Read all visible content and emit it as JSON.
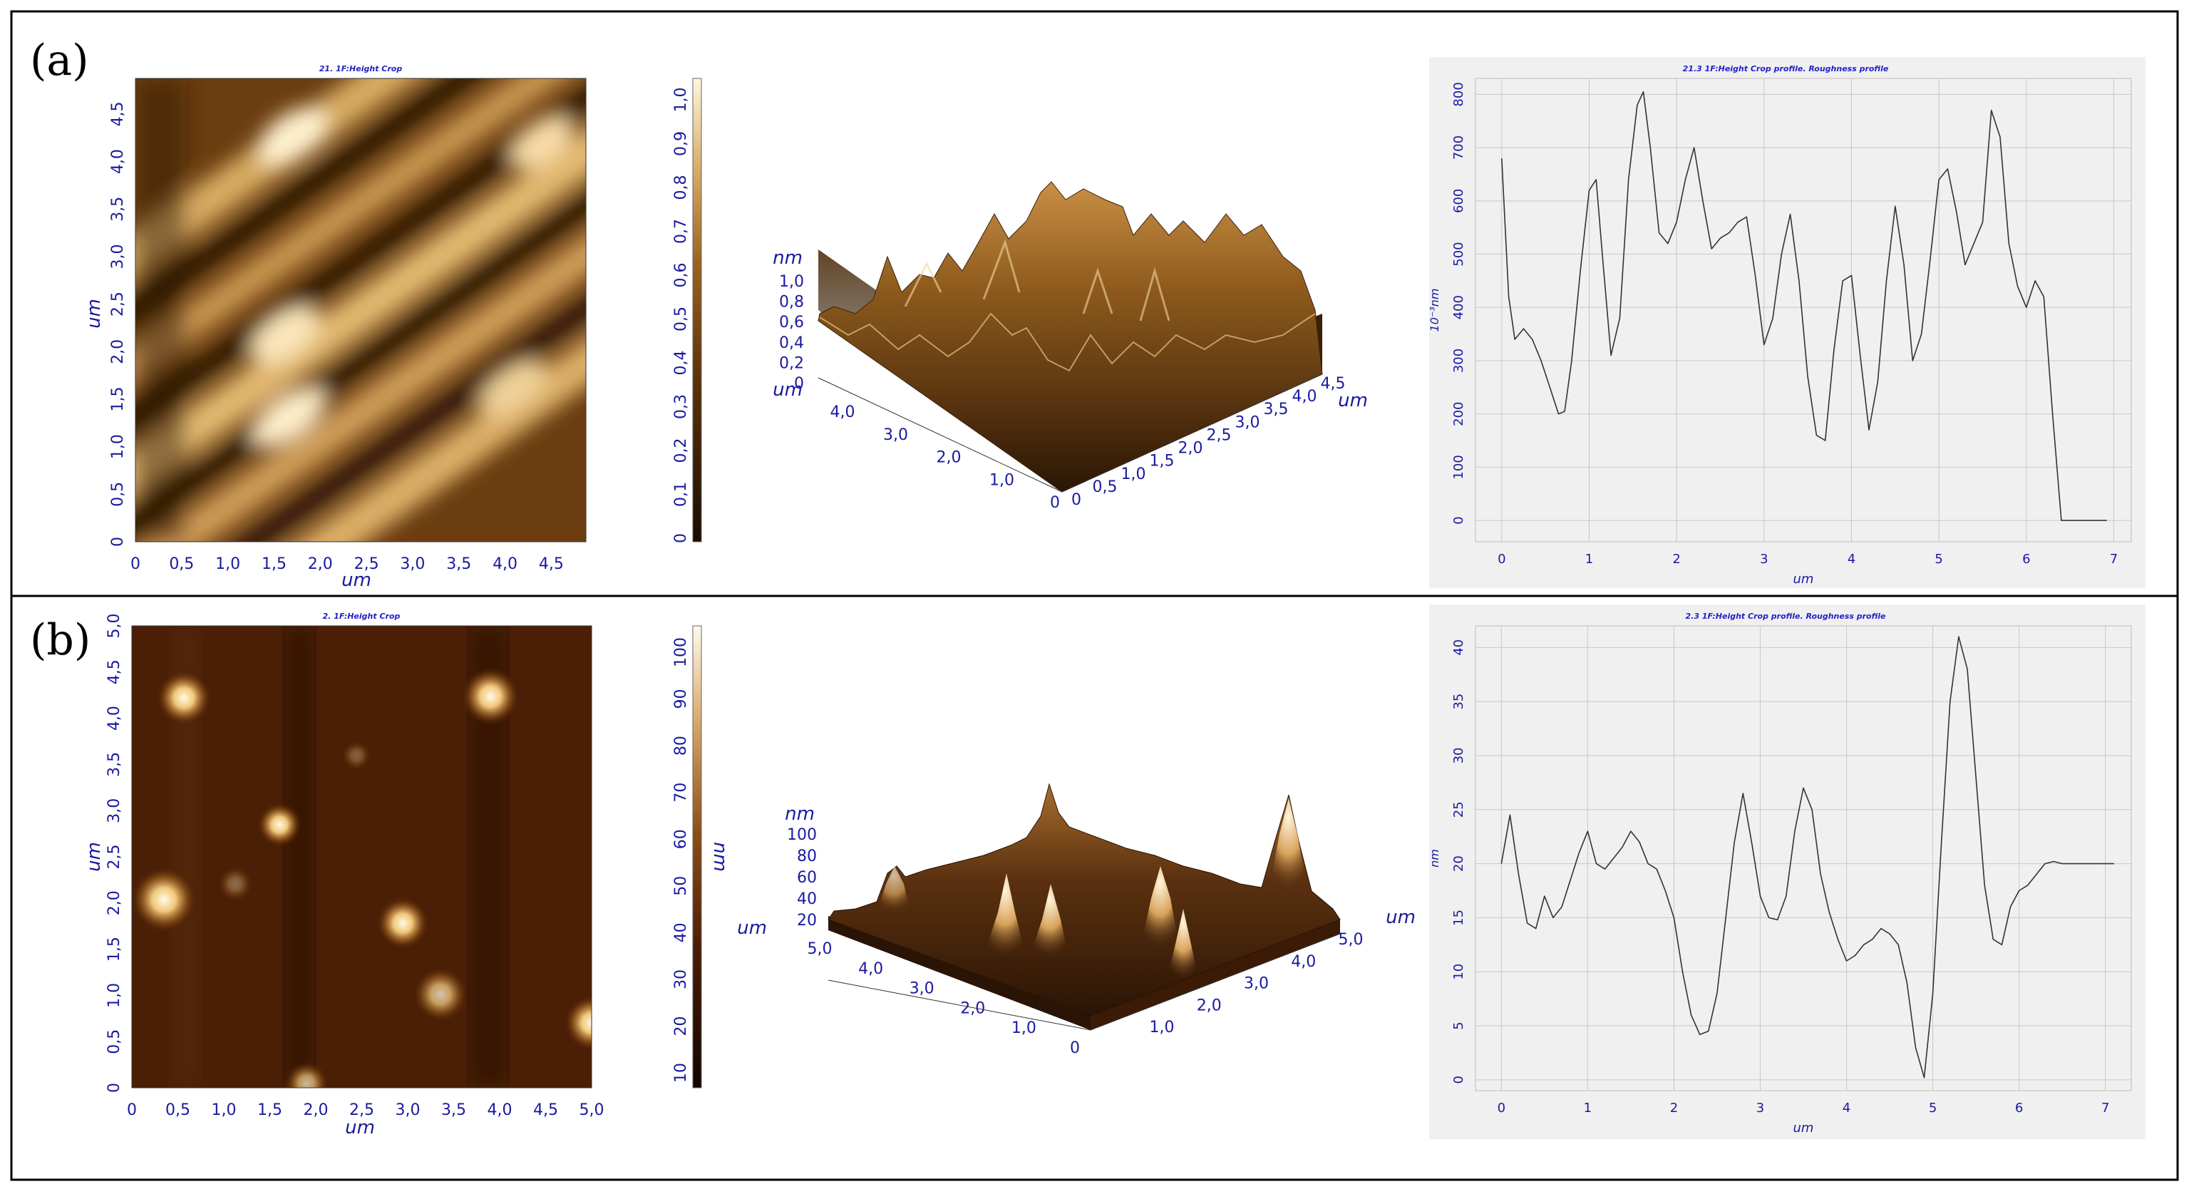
{
  "panels": [
    {
      "label": "(a)",
      "image_title": "21. 1F:Height Crop",
      "map_unit": "um",
      "map_xticks": [
        "0",
        "0,5",
        "1,0",
        "1,5",
        "2,0",
        "2,5",
        "3,0",
        "3,5",
        "4,0",
        "4,5"
      ],
      "map_yticks": [
        "0",
        "0,5",
        "1,0",
        "1,5",
        "2,0",
        "2,5",
        "3,0",
        "3,5",
        "4,0",
        "4,5"
      ],
      "colorbar_ticks": [
        "0",
        "0,1",
        "0,2",
        "0,3",
        "0,4",
        "0,5",
        "0,6",
        "0,7",
        "0,8",
        "0,9",
        "1,0"
      ],
      "colorbar_unit": "",
      "surface_z_unit": "nm",
      "surface_z_ticks": [
        "1,0",
        "0,8",
        "0,6",
        "0,4",
        "0,2",
        "0"
      ],
      "surface_left_unit": "um",
      "surface_left_ticks": [
        "4,0",
        "3,0",
        "2,0",
        "1,0",
        "0"
      ],
      "surface_right_unit": "um",
      "surface_right_ticks": [
        "0",
        "0,5",
        "1,0",
        "1,5",
        "2,0",
        "2,5",
        "3,0",
        "3,5",
        "4,0",
        "4,5"
      ]
    },
    {
      "label": "(b)",
      "image_title": "2. 1F:Height Crop",
      "map_unit": "um",
      "map_xticks": [
        "0",
        "0,5",
        "1,0",
        "1,5",
        "2,0",
        "2,5",
        "3,0",
        "3,5",
        "4,0",
        "4,5",
        "5,0"
      ],
      "map_yticks": [
        "0",
        "0,5",
        "1,0",
        "1,5",
        "2,0",
        "2,5",
        "3,0",
        "3,5",
        "4,0",
        "4,5",
        "5,0"
      ],
      "colorbar_ticks": [
        "10",
        "20",
        "30",
        "40",
        "50",
        "60",
        "70",
        "80",
        "90",
        "100"
      ],
      "colorbar_unit": "nm",
      "surface_z_unit": "nm",
      "surface_z_ticks": [
        "100",
        "80",
        "60",
        "40",
        "20"
      ],
      "surface_left_unit": "um",
      "surface_left_ticks": [
        "5,0",
        "4,0",
        "3,0",
        "2,0",
        "1,0",
        "0"
      ],
      "surface_right_unit": "um",
      "surface_right_ticks": [
        "1,0",
        "2,0",
        "3,0",
        "4,0",
        "5,0"
      ]
    }
  ],
  "chart_data": [
    {
      "type": "line",
      "title": "21.3 1F:Height Crop profile. Roughness profile",
      "xlabel": "um",
      "ylabel": "10⁻³nm",
      "xlim": [
        -0.3,
        7.2
      ],
      "ylim": [
        -40,
        830
      ],
      "xticks": [
        0,
        1,
        2,
        3,
        4,
        5,
        6,
        7
      ],
      "yticks": [
        0,
        100,
        200,
        300,
        400,
        500,
        600,
        700,
        800
      ],
      "grid": true,
      "x": [
        0,
        0.08,
        0.15,
        0.25,
        0.35,
        0.45,
        0.55,
        0.65,
        0.72,
        0.8,
        0.9,
        1.0,
        1.08,
        1.15,
        1.25,
        1.35,
        1.45,
        1.55,
        1.62,
        1.7,
        1.8,
        1.9,
        2.0,
        2.1,
        2.2,
        2.3,
        2.4,
        2.5,
        2.6,
        2.7,
        2.8,
        2.9,
        3.0,
        3.1,
        3.2,
        3.3,
        3.4,
        3.5,
        3.6,
        3.7,
        3.8,
        3.9,
        4.0,
        4.1,
        4.2,
        4.3,
        4.4,
        4.5,
        4.6,
        4.7,
        4.8,
        4.9,
        5.0,
        5.1,
        5.2,
        5.3,
        5.4,
        5.5,
        5.6,
        5.7,
        5.8,
        5.9,
        6.0,
        6.1,
        6.2,
        6.3,
        6.4,
        6.5,
        6.6,
        6.7,
        6.8,
        6.88,
        6.92
      ],
      "series": [
        {
          "values": [
            680,
            420,
            340,
            360,
            340,
            300,
            250,
            200,
            205,
            300,
            470,
            620,
            640,
            500,
            310,
            380,
            640,
            780,
            805,
            700,
            540,
            520,
            560,
            640,
            700,
            600,
            510,
            530,
            540,
            560,
            570,
            460,
            330,
            380,
            500,
            575,
            450,
            270,
            160,
            150,
            320,
            450,
            460,
            310,
            170,
            260,
            450,
            590,
            480,
            300,
            350,
            490,
            640,
            660,
            580,
            480,
            520,
            560,
            770,
            720,
            520,
            440,
            400,
            450,
            420,
            200,
            0,
            0,
            0,
            0,
            0,
            0,
            0
          ]
        }
      ]
    },
    {
      "type": "line",
      "title": "2.3 1F:Height Crop profile. Roughness profile",
      "xlabel": "um",
      "ylabel": "nm",
      "xlim": [
        -0.3,
        7.3
      ],
      "ylim": [
        -1,
        42
      ],
      "xticks": [
        0,
        1,
        2,
        3,
        4,
        5,
        6,
        7
      ],
      "yticks": [
        0,
        5,
        10,
        15,
        20,
        25,
        30,
        35,
        40
      ],
      "grid": true,
      "x": [
        0,
        0.1,
        0.2,
        0.3,
        0.4,
        0.5,
        0.6,
        0.7,
        0.8,
        0.9,
        1.0,
        1.1,
        1.2,
        1.3,
        1.4,
        1.5,
        1.6,
        1.7,
        1.8,
        1.9,
        2.0,
        2.1,
        2.2,
        2.3,
        2.4,
        2.5,
        2.6,
        2.7,
        2.8,
        2.9,
        3.0,
        3.1,
        3.2,
        3.3,
        3.4,
        3.5,
        3.6,
        3.7,
        3.8,
        3.9,
        4.0,
        4.1,
        4.2,
        4.3,
        4.4,
        4.5,
        4.6,
        4.7,
        4.8,
        4.9,
        5.0,
        5.1,
        5.2,
        5.3,
        5.4,
        5.5,
        5.6,
        5.7,
        5.8,
        5.9,
        6.0,
        6.1,
        6.2,
        6.3,
        6.4,
        6.5,
        6.6,
        6.7,
        6.8,
        6.9,
        7.0,
        7.1
      ],
      "series": [
        {
          "values": [
            20,
            24.5,
            19,
            14.5,
            14,
            17,
            15,
            16,
            18.5,
            21,
            23,
            20,
            19.5,
            20.5,
            21.5,
            23,
            22,
            20,
            19.5,
            17.5,
            15,
            10,
            6,
            4.2,
            4.5,
            8,
            15,
            22,
            26.5,
            22,
            17,
            15,
            14.8,
            17,
            23,
            27,
            25,
            19,
            15.5,
            13,
            11,
            11.5,
            12.5,
            13,
            14,
            13.5,
            12.5,
            9,
            3,
            0.2,
            8,
            22,
            35,
            41,
            38,
            28,
            18,
            13,
            12.5,
            16,
            17.5,
            18,
            19,
            20,
            20.2,
            20,
            20,
            20,
            20,
            20,
            20,
            20
          ]
        }
      ]
    }
  ]
}
